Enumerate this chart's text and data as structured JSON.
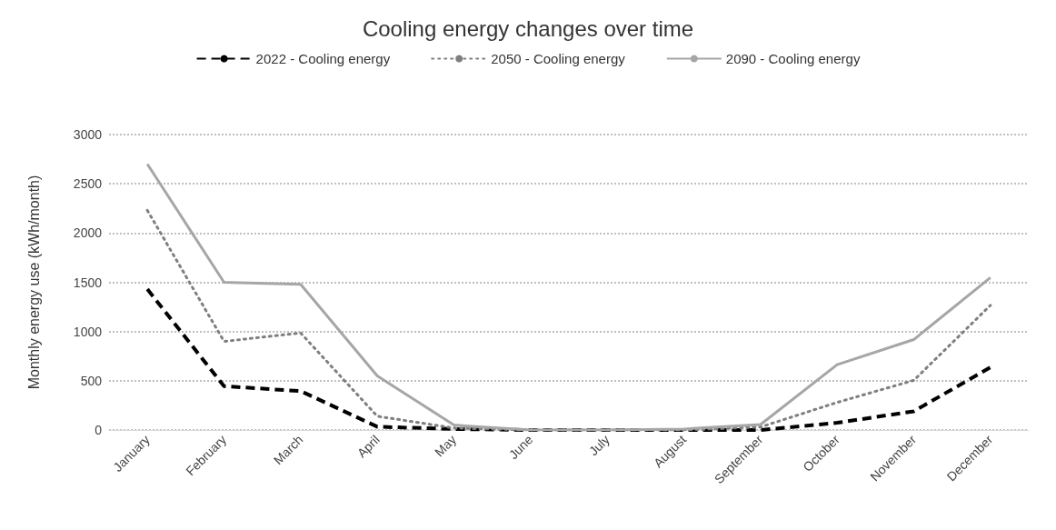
{
  "chart_data": {
    "type": "line",
    "title": "Cooling energy changes over time",
    "ylabel": "Monthly energy use (kWh/month)",
    "categories": [
      "January",
      "February",
      "March",
      "April",
      "May",
      "June",
      "July",
      "August",
      "September",
      "October",
      "November",
      "December"
    ],
    "series": [
      {
        "name": "2022 - Cooling energy",
        "color": "#000000",
        "line_style": "dashed",
        "values": [
          1430,
          445,
          395,
          33,
          10,
          0,
          0,
          0,
          0,
          73,
          190,
          636
        ]
      },
      {
        "name": "2050 - Cooling energy",
        "color": "#7f7f7f",
        "line_style": "dotted",
        "values": [
          2230,
          900,
          985,
          140,
          20,
          0,
          0,
          0,
          30,
          280,
          504,
          1266
        ]
      },
      {
        "name": "2090 - Cooling energy",
        "color": "#a6a6a6",
        "line_style": "solid",
        "values": [
          2700,
          1500,
          1480,
          550,
          50,
          0,
          0,
          10,
          55,
          663,
          918,
          1548
        ]
      }
    ],
    "ylim": [
      0,
      3000
    ],
    "yticks": [
      0,
      500,
      1000,
      1500,
      2000,
      2500,
      3000
    ],
    "grid": "y",
    "legend": "top",
    "marker": "none"
  }
}
